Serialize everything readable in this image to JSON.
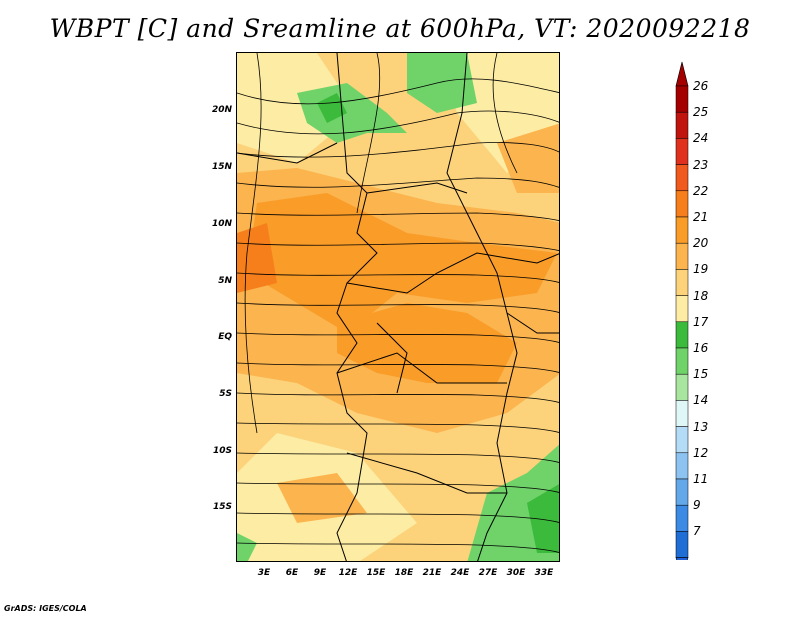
{
  "title": "WBPT [C] and Sreamline at 600hPa, VT: 2020092218",
  "footer": "GrADS: IGES/COLA",
  "map": {
    "lat_labels": [
      "20N",
      "15N",
      "10N",
      "5N",
      "EQ",
      "5S",
      "10S",
      "15S"
    ],
    "lon_labels": [
      "3E",
      "6E",
      "9E",
      "12E",
      "15E",
      "18E",
      "21E",
      "24E",
      "27E",
      "30E",
      "33E"
    ]
  },
  "colorbar": {
    "levels": [
      {
        "label": "26",
        "color": "#a50000"
      },
      {
        "label": "25",
        "color": "#c0140f"
      },
      {
        "label": "24",
        "color": "#e0301e"
      },
      {
        "label": "23",
        "color": "#f05a1e"
      },
      {
        "label": "22",
        "color": "#f67f1c"
      },
      {
        "label": "21",
        "color": "#f99c28"
      },
      {
        "label": "20",
        "color": "#fbb44e"
      },
      {
        "label": "19",
        "color": "#fcd27a"
      },
      {
        "label": "18",
        "color": "#fdeca4"
      },
      {
        "label": "17",
        "color": "#3cba3c"
      },
      {
        "label": "16",
        "color": "#6fd36a"
      },
      {
        "label": "15",
        "color": "#a8e6a0"
      },
      {
        "label": "14",
        "color": "#e0f7f7"
      },
      {
        "label": "13",
        "color": "#b4dcf6"
      },
      {
        "label": "12",
        "color": "#8cc3f1"
      },
      {
        "label": "11",
        "color": "#64a8ea"
      },
      {
        "label": "9",
        "color": "#3c8ae4"
      },
      {
        "label": "7",
        "color": "#1e6ed6"
      }
    ],
    "top_arrow_color": "#a50000",
    "bottom_arrow_color": "#2060d8"
  }
}
